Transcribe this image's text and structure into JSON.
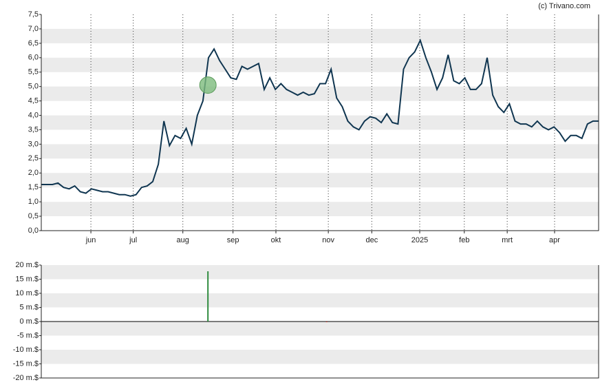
{
  "credit": "(c) Trivano.com",
  "chart_data": [
    {
      "type": "line",
      "x": [
        0,
        1,
        2,
        3,
        4,
        5,
        6,
        7,
        8,
        9,
        10,
        11,
        12,
        13,
        14,
        15,
        16,
        17,
        18,
        19,
        20,
        21,
        22,
        23,
        24,
        25,
        26,
        27,
        28,
        29,
        30,
        31,
        32,
        33,
        34,
        35,
        36,
        37,
        38,
        39,
        40,
        41,
        42,
        43,
        44,
        45,
        46,
        47,
        48,
        49,
        50,
        51,
        52,
        53,
        54,
        55,
        56,
        57,
        58,
        59,
        60,
        61,
        62,
        63,
        64,
        65,
        66,
        67,
        68,
        69,
        70,
        71,
        72,
        73,
        74,
        75,
        76,
        77,
        78,
        79,
        80,
        81,
        82,
        83,
        84,
        85,
        86,
        87,
        88,
        89,
        90,
        91,
        92,
        93,
        94,
        95,
        96,
        97,
        98,
        99,
        100
      ],
      "series": [
        {
          "color": "#0f3550",
          "values": [
            1.6,
            1.6,
            1.6,
            1.65,
            1.5,
            1.45,
            1.55,
            1.35,
            1.3,
            1.45,
            1.4,
            1.35,
            1.35,
            1.3,
            1.25,
            1.25,
            1.2,
            1.25,
            1.5,
            1.55,
            1.7,
            2.3,
            3.8,
            2.95,
            3.3,
            3.2,
            3.55,
            3.0,
            4.0,
            4.5,
            6.0,
            6.3,
            5.9,
            5.6,
            5.3,
            5.25,
            5.7,
            5.6,
            5.7,
            5.8,
            4.9,
            5.3,
            4.9,
            5.1,
            4.9,
            4.8,
            4.7,
            4.8,
            4.7,
            4.75,
            5.1,
            5.1,
            5.6,
            4.6,
            4.3,
            3.8,
            3.6,
            3.5,
            3.8,
            3.95,
            3.9,
            3.75,
            4.05,
            3.75,
            3.7,
            5.6,
            6.0,
            6.2,
            6.6,
            6.0,
            5.5,
            4.9,
            5.3,
            6.1,
            5.2,
            5.1,
            5.3,
            4.9,
            4.9,
            5.1,
            6.0,
            4.7,
            4.3,
            4.1,
            4.4,
            3.8,
            3.7,
            3.7,
            3.6,
            3.8,
            3.6,
            3.5,
            3.6,
            3.4,
            3.1,
            3.3,
            3.3,
            3.2,
            3.7,
            3.8,
            3.8
          ]
        }
      ],
      "event_marker": {
        "x": 29.9,
        "y": 5.05,
        "color": "#7dbb7d"
      },
      "xlim": [
        0,
        100
      ],
      "xticks": [
        {
          "value": 8.9,
          "label": "jun"
        },
        {
          "value": 16.5,
          "label": "jul"
        },
        {
          "value": 25.4,
          "label": "aug"
        },
        {
          "value": 34.4,
          "label": "sep"
        },
        {
          "value": 42.1,
          "label": "okt"
        },
        {
          "value": 51.5,
          "label": "nov"
        },
        {
          "value": 59.3,
          "label": "dec"
        },
        {
          "value": 67.9,
          "label": "2025"
        },
        {
          "value": 75.9,
          "label": "feb"
        },
        {
          "value": 83.6,
          "label": "mrt"
        },
        {
          "value": 92.1,
          "label": "apr"
        }
      ],
      "ylim": [
        0,
        7.5
      ],
      "yticks": [
        {
          "value": 7.5,
          "label": "7,5"
        },
        {
          "value": 7,
          "label": "7,0"
        },
        {
          "value": 6.5,
          "label": "6,5"
        },
        {
          "value": 6,
          "label": "6,0"
        },
        {
          "value": 5.5,
          "label": "5,5"
        },
        {
          "value": 5,
          "label": "5,0"
        },
        {
          "value": 4.5,
          "label": "4,5"
        },
        {
          "value": 4,
          "label": "4,0"
        },
        {
          "value": 3.5,
          "label": "3,5"
        },
        {
          "value": 3,
          "label": "3,0"
        },
        {
          "value": 2.5,
          "label": "2,5"
        },
        {
          "value": 2,
          "label": "2,0"
        },
        {
          "value": 1.5,
          "label": "1,5"
        },
        {
          "value": 1,
          "label": "1,0"
        },
        {
          "value": 0.5,
          "label": "0,5"
        },
        {
          "value": 0,
          "label": "0,0"
        }
      ],
      "grid": true
    },
    {
      "type": "bar",
      "x": [
        29.9,
        51.2
      ],
      "series": [
        {
          "colors": [
            "#2e8b3e",
            "#c0392b"
          ],
          "values": [
            17.8,
            -0.2
          ]
        }
      ],
      "xlim": [
        0,
        100
      ],
      "ylim": [
        -20,
        20
      ],
      "yticks": [
        {
          "value": 20,
          "label": "20 m.$"
        },
        {
          "value": 15,
          "label": "15 m.$"
        },
        {
          "value": 10,
          "label": "10 m.$"
        },
        {
          "value": 5,
          "label": "5 m.$"
        },
        {
          "value": 0,
          "label": "0 m.$"
        },
        {
          "value": -5,
          "label": "-5 m.$"
        },
        {
          "value": -10,
          "label": "-10 m.$"
        },
        {
          "value": -15,
          "label": "-15 m.$"
        },
        {
          "value": -20,
          "label": "-20 m.$"
        }
      ],
      "grid": true
    }
  ]
}
